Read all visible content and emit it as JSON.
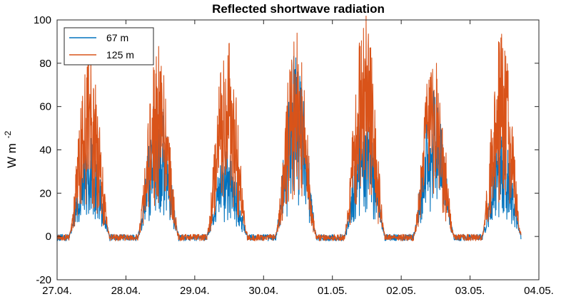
{
  "chart_data": {
    "type": "line",
    "title": "Reflected shortwave radiation",
    "ylabel_base": "W m",
    "ylabel_exp": "-2",
    "xlabel": "",
    "x_tick_labels": [
      "27.04.",
      "28.04.",
      "29.04.",
      "30.04.",
      "01.05.",
      "02.05.",
      "03.05.",
      "04.05."
    ],
    "xlim": [
      0,
      7
    ],
    "ylim": [
      -20,
      100
    ],
    "yticks": [
      -20,
      0,
      20,
      40,
      60,
      80,
      100
    ],
    "grid": false,
    "legend_position": "top-left",
    "days": [
      {
        "start": 0.18,
        "peak": 0.47,
        "end": 0.76,
        "p67": 45,
        "p125": 80
      },
      {
        "start": 1.18,
        "peak": 1.47,
        "end": 1.76,
        "p67": 66,
        "p125": 82
      },
      {
        "start": 2.18,
        "peak": 2.47,
        "end": 2.76,
        "p67": 40,
        "p125": 90
      },
      {
        "start": 3.18,
        "peak": 3.47,
        "end": 3.76,
        "p67": 84,
        "p125": 90
      },
      {
        "start": 4.18,
        "peak": 4.47,
        "end": 4.76,
        "p67": 64,
        "p125": 98
      },
      {
        "start": 5.18,
        "peak": 5.47,
        "end": 5.76,
        "p67": 67,
        "p125": 80
      },
      {
        "start": 6.18,
        "peak": 6.47,
        "end": 6.74,
        "p67": 48,
        "p125": 90
      }
    ],
    "x_end": 6.74,
    "series": [
      {
        "name": "67 m",
        "color": "#0072BD"
      },
      {
        "name": "125 m",
        "color": "#D95319"
      }
    ]
  }
}
